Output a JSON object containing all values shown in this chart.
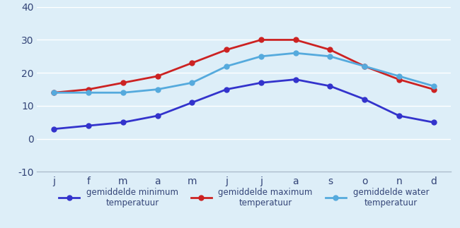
{
  "months": [
    "j",
    "f",
    "m",
    "a",
    "m",
    "j",
    "j",
    "a",
    "s",
    "o",
    "n",
    "d"
  ],
  "min_temp": [
    3,
    4,
    5,
    7,
    11,
    15,
    17,
    18,
    16,
    12,
    7,
    5
  ],
  "max_temp": [
    14,
    15,
    17,
    19,
    23,
    27,
    30,
    30,
    27,
    22,
    18,
    15
  ],
  "water_temp": [
    14,
    14,
    14,
    15,
    17,
    22,
    25,
    26,
    25,
    22,
    19,
    16
  ],
  "min_color": "#3333cc",
  "max_color": "#cc2222",
  "water_color": "#55aadd",
  "background_color": "#ddeef8",
  "ylim": [
    -10,
    40
  ],
  "yticks": [
    -10,
    0,
    10,
    20,
    30,
    40
  ],
  "legend_min": "gemiddelde minimum\ntemperatuur",
  "legend_max": "gemiddelde maximum\ntemperatuur",
  "legend_water": "gemiddelde water\ntemperatuur",
  "linewidth": 2.0,
  "marker": "o",
  "marker_size": 5,
  "tick_color": "#334477",
  "grid_color": "#ffffff",
  "spine_color": "#aabbcc"
}
